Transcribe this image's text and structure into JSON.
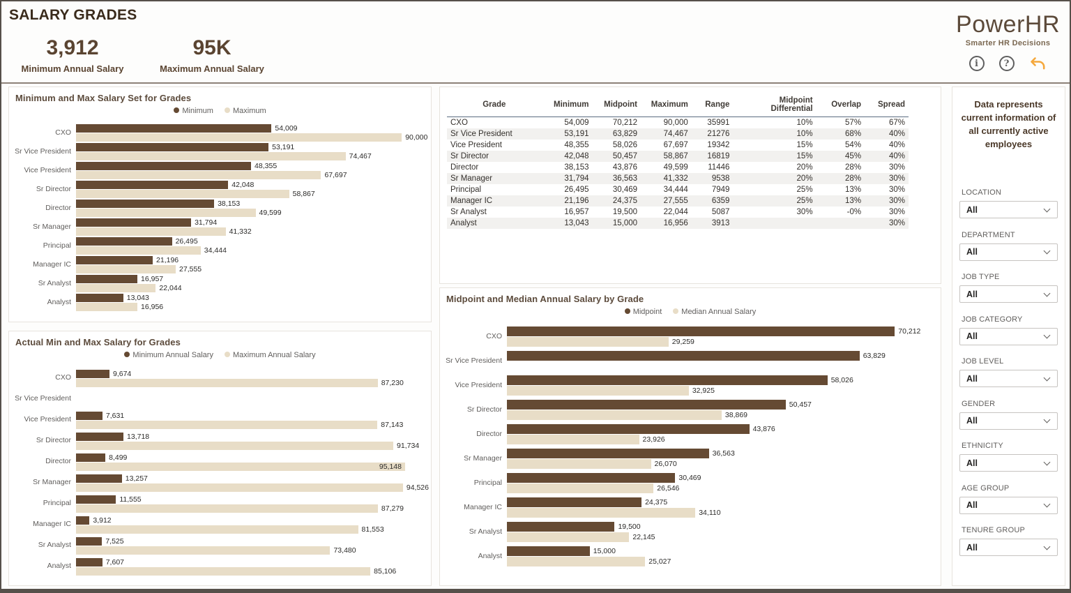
{
  "header": {
    "title": "SALARY GRADES",
    "kpis": [
      {
        "value": "3,912",
        "label": "Minimum Annual Salary"
      },
      {
        "value": "95K",
        "label": "Maximum Annual Salary"
      }
    ],
    "brand": {
      "name": "PowerHR",
      "tagline": "Smarter HR Decisions"
    },
    "icons": [
      {
        "name": "info-icon",
        "glyph": "i"
      },
      {
        "name": "help-icon",
        "glyph": "?"
      },
      {
        "name": "undo-icon",
        "glyph": "undo-arrow"
      }
    ]
  },
  "colors": {
    "series_dark": "#654A33",
    "series_light": "#E8DDC7",
    "accent_orange": "#F5A83C",
    "brand_brown": "#5C4A3A",
    "kpi_brown": "#5A4431",
    "chart_title_brown": "#5C4B3C",
    "text_gray": "#605E5C"
  },
  "chart_data": [
    {
      "type": "bar",
      "orientation": "horizontal",
      "title": "Minimum and Max Salary Set for Grades",
      "legend": [
        "Minimum",
        "Maximum"
      ],
      "legend_position": "top-center",
      "categories": [
        "CXO",
        "Sr Vice President",
        "Vice President",
        "Sr Director",
        "Director",
        "Sr Manager",
        "Principal",
        "Manager IC",
        "Sr Analyst",
        "Analyst"
      ],
      "series": [
        {
          "name": "Minimum",
          "values": [
            54009,
            53191,
            48355,
            42048,
            38153,
            31794,
            26495,
            21196,
            16957,
            13043
          ]
        },
        {
          "name": "Maximum",
          "values": [
            90000,
            74467,
            67697,
            58867,
            49599,
            41332,
            34444,
            27555,
            22044,
            16956
          ]
        }
      ],
      "xmax": 96500,
      "grid": false,
      "inside_labels": []
    },
    {
      "type": "bar",
      "orientation": "horizontal",
      "title": "Actual Min and Max Salary for Grades",
      "legend": [
        "Minimum Annual Salary",
        "Maximum Annual Salary"
      ],
      "legend_position": "top-center",
      "categories": [
        "CXO",
        "Sr Vice President",
        "Vice President",
        "Sr Director",
        "Director",
        "Sr Manager",
        "Principal",
        "Manager IC",
        "Sr Analyst",
        "Analyst"
      ],
      "series": [
        {
          "name": "Minimum Annual Salary",
          "values": [
            9674,
            null,
            7631,
            13718,
            8499,
            13257,
            11555,
            3912,
            7525,
            7607
          ]
        },
        {
          "name": "Maximum Annual Salary",
          "values": [
            87230,
            null,
            87143,
            91734,
            95148,
            94526,
            87279,
            81553,
            73480,
            85106
          ]
        }
      ],
      "xmax": 101000,
      "grid": false,
      "inside_labels": [
        [
          1,
          4
        ]
      ]
    },
    {
      "type": "bar",
      "orientation": "horizontal",
      "title": "Midpoint and Median Annual Salary by Grade",
      "legend": [
        "Midpoint",
        "Median Annual Salary"
      ],
      "legend_position": "top-center",
      "categories": [
        "CXO",
        "Sr Vice President",
        "Vice President",
        "Sr Director",
        "Director",
        "Sr Manager",
        "Principal",
        "Manager IC",
        "Sr Analyst",
        "Analyst"
      ],
      "series": [
        {
          "name": "Midpoint",
          "values": [
            70212,
            63829,
            58026,
            50457,
            43876,
            36563,
            30469,
            24375,
            19500,
            15000
          ]
        },
        {
          "name": "Median Annual Salary",
          "values": [
            29259,
            null,
            32925,
            38869,
            23926,
            26070,
            26546,
            34110,
            22145,
            25027
          ]
        }
      ],
      "xmax": 77500,
      "grid": false,
      "inside_labels": []
    }
  ],
  "table": {
    "columns": [
      "Grade",
      "Minimum",
      "Midpoint",
      "Maximum",
      "Range",
      "Midpoint Differential",
      "Overlap",
      "Spread"
    ],
    "rows": [
      [
        "CXO",
        "54,009",
        "70,212",
        "90,000",
        "35991",
        "10%",
        "57%",
        "67%"
      ],
      [
        "Sr Vice President",
        "53,191",
        "63,829",
        "74,467",
        "21276",
        "10%",
        "68%",
        "40%"
      ],
      [
        "Vice President",
        "48,355",
        "58,026",
        "67,697",
        "19342",
        "15%",
        "54%",
        "40%"
      ],
      [
        "Sr Director",
        "42,048",
        "50,457",
        "58,867",
        "16819",
        "15%",
        "45%",
        "40%"
      ],
      [
        "Director",
        "38,153",
        "43,876",
        "49,599",
        "11446",
        "20%",
        "28%",
        "30%"
      ],
      [
        "Sr Manager",
        "31,794",
        "36,563",
        "41,332",
        "9538",
        "20%",
        "28%",
        "30%"
      ],
      [
        "Principal",
        "26,495",
        "30,469",
        "34,444",
        "7949",
        "25%",
        "13%",
        "30%"
      ],
      [
        "Manager IC",
        "21,196",
        "24,375",
        "27,555",
        "6359",
        "25%",
        "13%",
        "30%"
      ],
      [
        "Sr Analyst",
        "16,957",
        "19,500",
        "22,044",
        "5087",
        "30%",
        "-0%",
        "30%"
      ],
      [
        "Analyst",
        "13,043",
        "15,000",
        "16,956",
        "3913",
        "",
        "",
        "30%"
      ]
    ]
  },
  "sidebar": {
    "note": "Data represents current information of all currently active employees",
    "filters": [
      {
        "label": "LOCATION",
        "value": "All"
      },
      {
        "label": "DEPARTMENT",
        "value": "All"
      },
      {
        "label": "JOB TYPE",
        "value": "All"
      },
      {
        "label": "JOB CATEGORY",
        "value": "All"
      },
      {
        "label": "JOB LEVEL",
        "value": "All"
      },
      {
        "label": "GENDER",
        "value": "All"
      },
      {
        "label": "ETHNICITY",
        "value": "All"
      },
      {
        "label": "AGE GROUP",
        "value": "All"
      },
      {
        "label": "TENURE GROUP",
        "value": "All"
      }
    ]
  }
}
